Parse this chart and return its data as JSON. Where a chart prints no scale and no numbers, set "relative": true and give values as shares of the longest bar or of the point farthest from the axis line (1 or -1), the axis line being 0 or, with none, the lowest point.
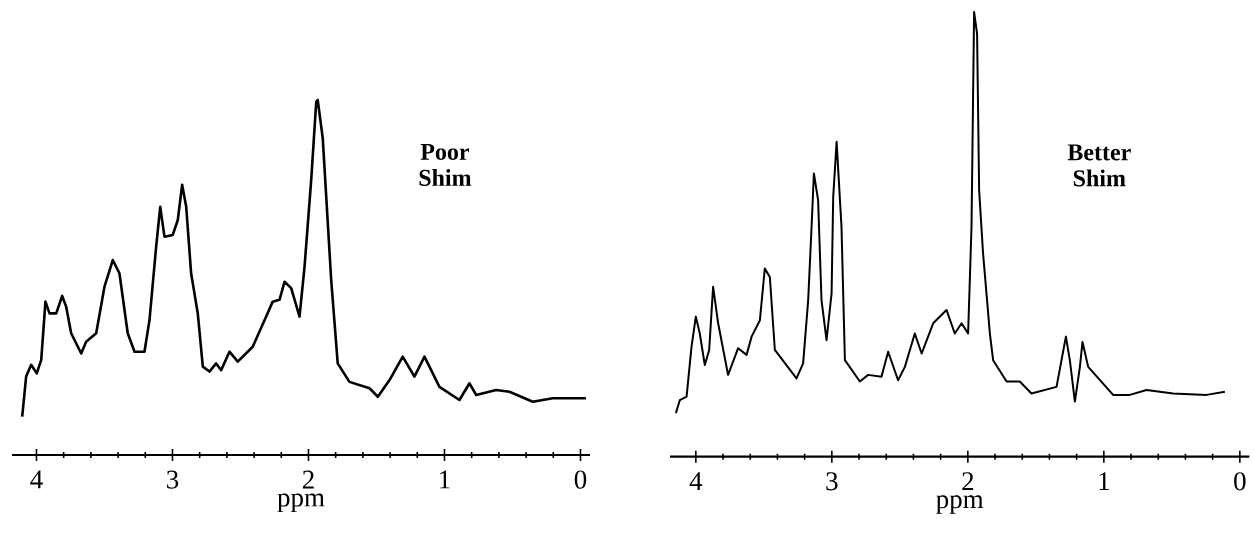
{
  "chart_data": [
    {
      "type": "line",
      "relative": true,
      "color": "#000000",
      "xlabel": "ppm",
      "xlim": [
        4.18,
        -0.07
      ],
      "xticks": [
        4,
        3,
        2,
        1,
        0
      ],
      "annotations": [
        "Poor Shim"
      ],
      "x": [
        4.105,
        4.076,
        4.039,
        3.998,
        3.965,
        3.934,
        3.904,
        3.855,
        3.811,
        3.782,
        3.745,
        3.671,
        3.635,
        3.561,
        3.5,
        3.439,
        3.39,
        3.329,
        3.279,
        3.206,
        3.169,
        3.12,
        3.09,
        3.059,
        2.998,
        2.961,
        2.929,
        2.899,
        2.863,
        2.814,
        2.777,
        2.728,
        2.679,
        2.642,
        2.581,
        2.52,
        2.41,
        2.311,
        2.263,
        2.213,
        2.176,
        2.127,
        2.066,
        2.029,
        1.98,
        1.943,
        1.932,
        1.895,
        1.833,
        1.785,
        1.699,
        1.551,
        1.49,
        1.404,
        1.307,
        1.221,
        1.147,
        1.037,
        0.89,
        0.816,
        0.767,
        0.62,
        0.522,
        0.351,
        0.204,
        -0.04
      ],
      "values": [
        0.108,
        0.221,
        0.254,
        0.23,
        0.268,
        0.432,
        0.399,
        0.399,
        0.448,
        0.418,
        0.343,
        0.286,
        0.319,
        0.343,
        0.474,
        0.549,
        0.512,
        0.343,
        0.291,
        0.291,
        0.38,
        0.587,
        0.699,
        0.615,
        0.62,
        0.662,
        0.761,
        0.699,
        0.512,
        0.399,
        0.249,
        0.235,
        0.258,
        0.239,
        0.291,
        0.263,
        0.305,
        0.39,
        0.432,
        0.437,
        0.488,
        0.47,
        0.39,
        0.53,
        0.775,
        0.995,
        1.0,
        0.892,
        0.493,
        0.258,
        0.206,
        0.188,
        0.164,
        0.211,
        0.277,
        0.221,
        0.277,
        0.192,
        0.155,
        0.202,
        0.169,
        0.183,
        0.178,
        0.15,
        0.16,
        0.16
      ]
    },
    {
      "type": "line",
      "relative": true,
      "color": "#000000",
      "xlabel": "ppm",
      "xlim": [
        4.19,
        -0.07
      ],
      "xticks": [
        4,
        3,
        2,
        1,
        0
      ],
      "annotations": [
        "Better Shim"
      ],
      "x": [
        4.147,
        4.118,
        4.068,
        4.032,
        4.0,
        3.971,
        3.934,
        3.902,
        3.873,
        3.836,
        3.763,
        3.689,
        3.627,
        3.59,
        3.529,
        3.493,
        3.456,
        3.419,
        3.26,
        3.211,
        3.174,
        3.149,
        3.132,
        3.101,
        3.076,
        3.039,
        3.002,
        2.99,
        2.965,
        2.929,
        2.904,
        2.794,
        2.733,
        2.635,
        2.586,
        2.513,
        2.463,
        2.39,
        2.34,
        2.255,
        2.157,
        2.096,
        2.046,
        1.998,
        1.973,
        1.954,
        1.932,
        1.917,
        1.888,
        1.838,
        1.814,
        1.715,
        1.618,
        1.532,
        1.348,
        1.279,
        1.25,
        1.213,
        1.176,
        1.157,
        1.115,
        0.932,
        0.809,
        0.686,
        0.49,
        0.245,
        0.11
      ],
      "values": [
        0.098,
        0.127,
        0.135,
        0.247,
        0.315,
        0.277,
        0.206,
        0.24,
        0.382,
        0.3,
        0.184,
        0.244,
        0.229,
        0.27,
        0.307,
        0.423,
        0.404,
        0.24,
        0.176,
        0.21,
        0.352,
        0.517,
        0.637,
        0.577,
        0.352,
        0.262,
        0.367,
        0.584,
        0.708,
        0.517,
        0.217,
        0.169,
        0.184,
        0.18,
        0.236,
        0.172,
        0.202,
        0.277,
        0.232,
        0.3,
        0.33,
        0.277,
        0.3,
        0.277,
        0.517,
        1.0,
        0.951,
        0.599,
        0.457,
        0.277,
        0.217,
        0.169,
        0.169,
        0.142,
        0.157,
        0.27,
        0.217,
        0.124,
        0.202,
        0.258,
        0.202,
        0.139,
        0.139,
        0.15,
        0.142,
        0.139,
        0.146
      ]
    }
  ]
}
